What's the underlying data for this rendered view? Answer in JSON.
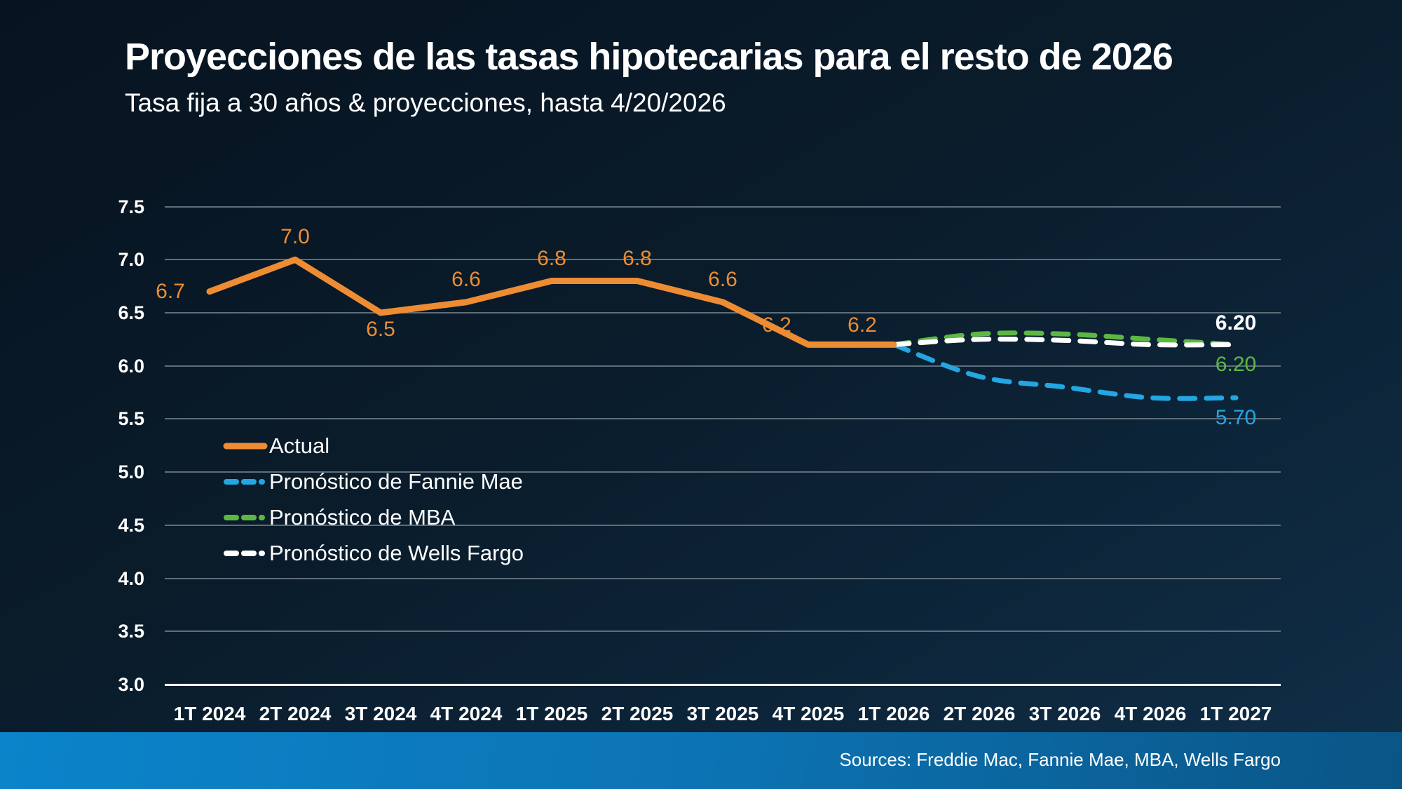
{
  "page": {
    "title": "Proyecciones de las tasas hipotecarias para el resto de 2026",
    "subtitle": "Tasa fija a 30 años & proyecciones, hasta 4/20/2026"
  },
  "footer": {
    "sources": "Sources: Freddie Mac, Fannie Mae, MBA, Wells Fargo"
  },
  "colors": {
    "background_dark": "#071320",
    "background_light": "#103049",
    "gridline": "#5e6e7a",
    "axis": "#ffffff",
    "actual": "#ED8C33",
    "fannie_mae": "#23A6E1",
    "mba": "#5CB843",
    "wells_fargo": "#FFFFFF",
    "footer_bar_left": "#0b84cb",
    "footer_bar_right": "#0a5586"
  },
  "chart_data": {
    "type": "line",
    "title": "Proyecciones de las tasas hipotecarias para el resto de 2026",
    "subtitle": "Tasa fija a 30 años & proyecciones, hasta 4/20/2026",
    "x_categories": [
      "1T 2024",
      "2T 2024",
      "3T 2024",
      "4T 2024",
      "1T 2025",
      "2T 2025",
      "3T 2025",
      "4T 2025",
      "1T 2026",
      "2T 2026",
      "3T 2026",
      "4T 2026",
      "1T 2027"
    ],
    "y_axis": {
      "min": 3.0,
      "max": 7.5,
      "step": 0.5,
      "tick_labels": [
        "7.5",
        "7.0",
        "6.5",
        "6.0",
        "5.5",
        "5.0",
        "4.5",
        "4.0",
        "3.5",
        "3.0"
      ]
    },
    "grid": "horizontal",
    "legend_position": "inside-left",
    "series": [
      {
        "name": "Actual",
        "line_style": "solid",
        "color": "#ED8C33",
        "start_index": 0,
        "values": [
          6.7,
          7.0,
          6.5,
          6.6,
          6.8,
          6.8,
          6.6,
          6.2,
          6.2
        ],
        "point_labels": [
          "6.7",
          "7.0",
          "6.5",
          "6.6",
          "6.8",
          "6.8",
          "6.6",
          "6.2",
          "6.2"
        ],
        "point_label_pos": [
          "left",
          "above",
          "below",
          "above",
          "above",
          "above",
          "above",
          "above-left",
          "above-left"
        ]
      },
      {
        "name": "Pronóstico de Fannie Mae",
        "line_style": "dashed",
        "color": "#23A6E1",
        "start_index": 8,
        "values": [
          6.2,
          5.9,
          5.8,
          5.7,
          5.7
        ],
        "end_label": "5.70",
        "end_label_side": "below"
      },
      {
        "name": "Pronóstico de MBA",
        "line_style": "dashed",
        "color": "#5CB843",
        "start_index": 8,
        "values": [
          6.2,
          6.3,
          6.3,
          6.25,
          6.2
        ],
        "end_label": "6.20",
        "end_label_side": "below"
      },
      {
        "name": "Pronóstico de Wells Fargo",
        "line_style": "dashed",
        "color": "#FFFFFF",
        "start_index": 8,
        "values": [
          6.2,
          6.25,
          6.24,
          6.2,
          6.2
        ],
        "end_label": "6.20",
        "end_label_side": "above"
      }
    ]
  }
}
